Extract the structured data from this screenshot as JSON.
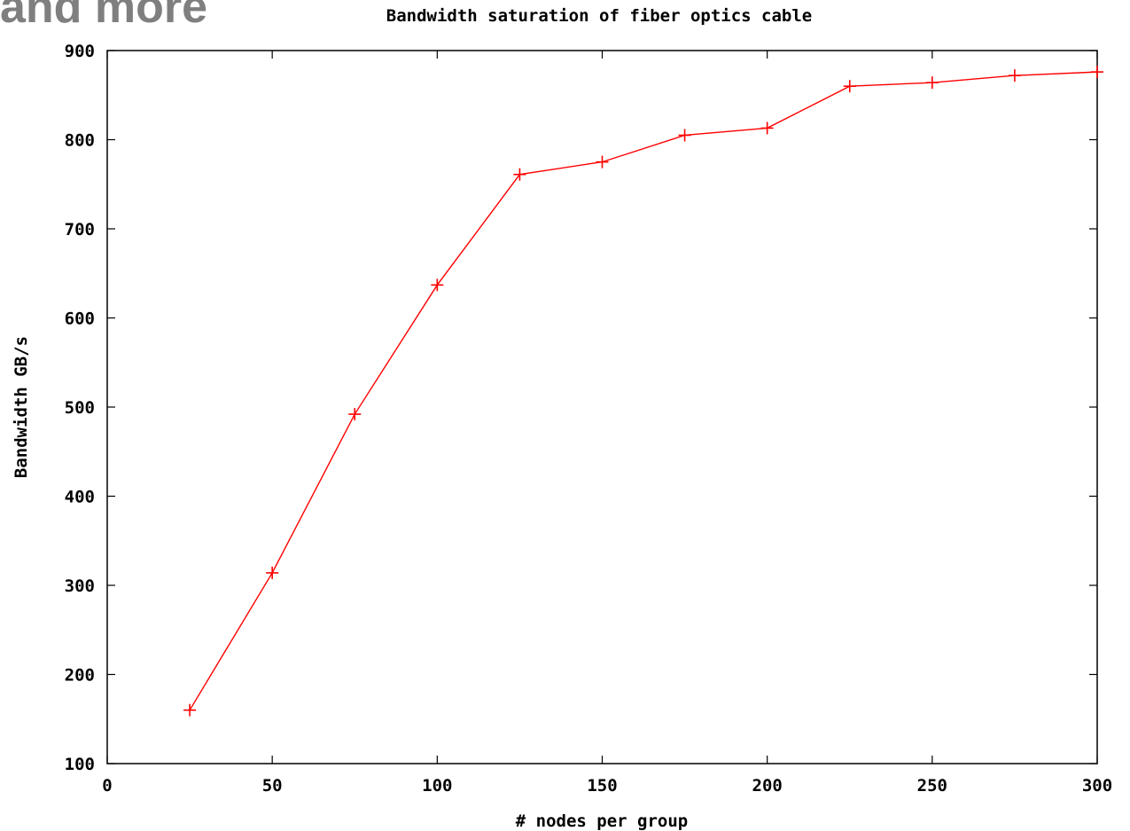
{
  "slide": {
    "heading_fragment": "and more"
  },
  "chart_data": {
    "type": "line",
    "title": "Bandwidth saturation of fiber optics cable",
    "xlabel": "# nodes per group",
    "ylabel": "Bandwidth GB/s",
    "xlim": [
      0,
      300
    ],
    "ylim": [
      100,
      900
    ],
    "xticks": [
      0,
      50,
      100,
      150,
      200,
      250,
      300
    ],
    "yticks": [
      100,
      200,
      300,
      400,
      500,
      600,
      700,
      800,
      900
    ],
    "grid": false,
    "legend": "none",
    "marker": "plus",
    "color": "#ff0000",
    "series": [
      {
        "x": [
          25,
          50,
          75,
          100,
          125,
          150,
          175,
          200,
          225,
          250,
          275,
          300
        ],
        "y": [
          160,
          314,
          492,
          637,
          761,
          775,
          805,
          813,
          860,
          864,
          872,
          876
        ]
      }
    ]
  }
}
